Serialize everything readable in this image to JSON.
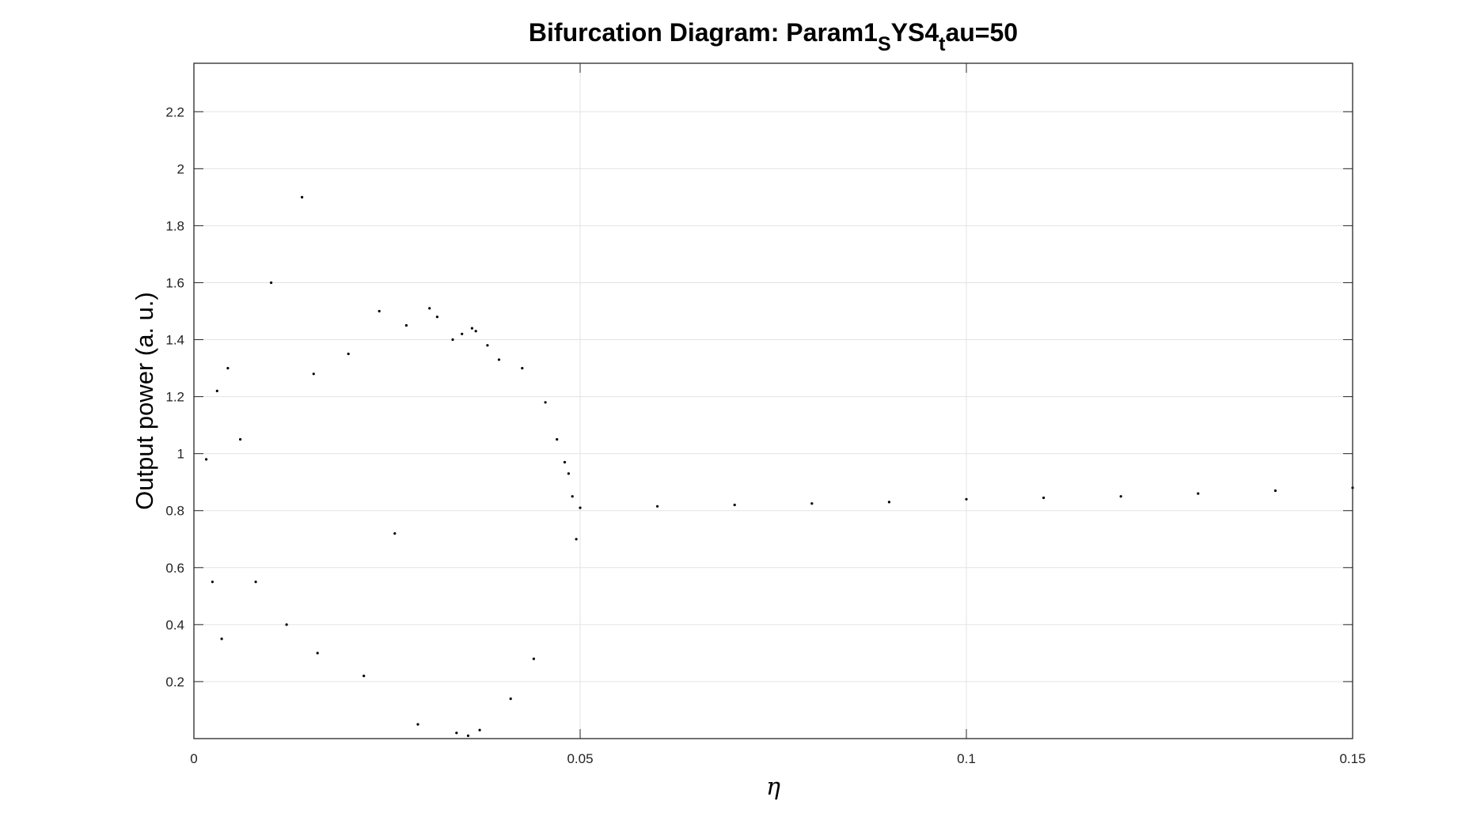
{
  "chart_data": {
    "type": "scatter",
    "title": {
      "main": "Bifurcation Diagram: Param1",
      "sub1": "S",
      "mid": "YS4",
      "sub2": "t",
      "tail": "au=50"
    },
    "xlabel": "η",
    "ylabel": "Output power (a. u.)",
    "xlim": [
      0,
      0.15
    ],
    "ylim": [
      0,
      2.37
    ],
    "xticks": [
      0,
      0.05,
      0.1,
      0.15
    ],
    "xtick_labels": [
      "0",
      "0.05",
      "0.1",
      "0.15"
    ],
    "yticks": [
      0.2,
      0.4,
      0.6,
      0.8,
      1,
      1.2,
      1.4,
      1.6,
      1.8,
      2,
      2.2
    ],
    "ytick_labels": [
      "0.2",
      "0.4",
      "0.6",
      "0.8",
      "1",
      "1.2",
      "1.4",
      "1.6",
      "1.8",
      "2",
      "2.2"
    ],
    "grid": true,
    "marker_color": "#000000",
    "series": [
      {
        "x": [
          0.0016,
          0.0024,
          0.003,
          0.0036,
          0.0044,
          0.006,
          0.008,
          0.01,
          0.012,
          0.014,
          0.0155,
          0.016,
          0.02,
          0.022,
          0.024,
          0.026,
          0.0275,
          0.029,
          0.0305,
          0.0315,
          0.0335,
          0.034,
          0.0347,
          0.0355,
          0.036,
          0.0365,
          0.037,
          0.038,
          0.0395,
          0.041,
          0.0425,
          0.044,
          0.0455,
          0.047,
          0.048,
          0.0485,
          0.049,
          0.0495,
          0.05,
          0.06,
          0.07,
          0.08,
          0.09,
          0.1,
          0.11,
          0.12,
          0.13,
          0.14,
          0.15
        ],
        "y": [
          0.98,
          0.55,
          1.22,
          0.35,
          1.3,
          1.05,
          0.55,
          1.6,
          0.4,
          1.9,
          1.28,
          0.3,
          1.35,
          0.22,
          1.5,
          0.72,
          1.45,
          0.05,
          1.51,
          1.48,
          1.4,
          0.02,
          1.42,
          0.01,
          1.44,
          1.43,
          0.03,
          1.38,
          1.33,
          0.14,
          1.3,
          0.28,
          1.18,
          1.05,
          0.97,
          0.93,
          0.85,
          0.7,
          0.81,
          0.815,
          0.82,
          0.825,
          0.83,
          0.84,
          0.845,
          0.85,
          0.86,
          0.87,
          0.88
        ]
      }
    ]
  }
}
